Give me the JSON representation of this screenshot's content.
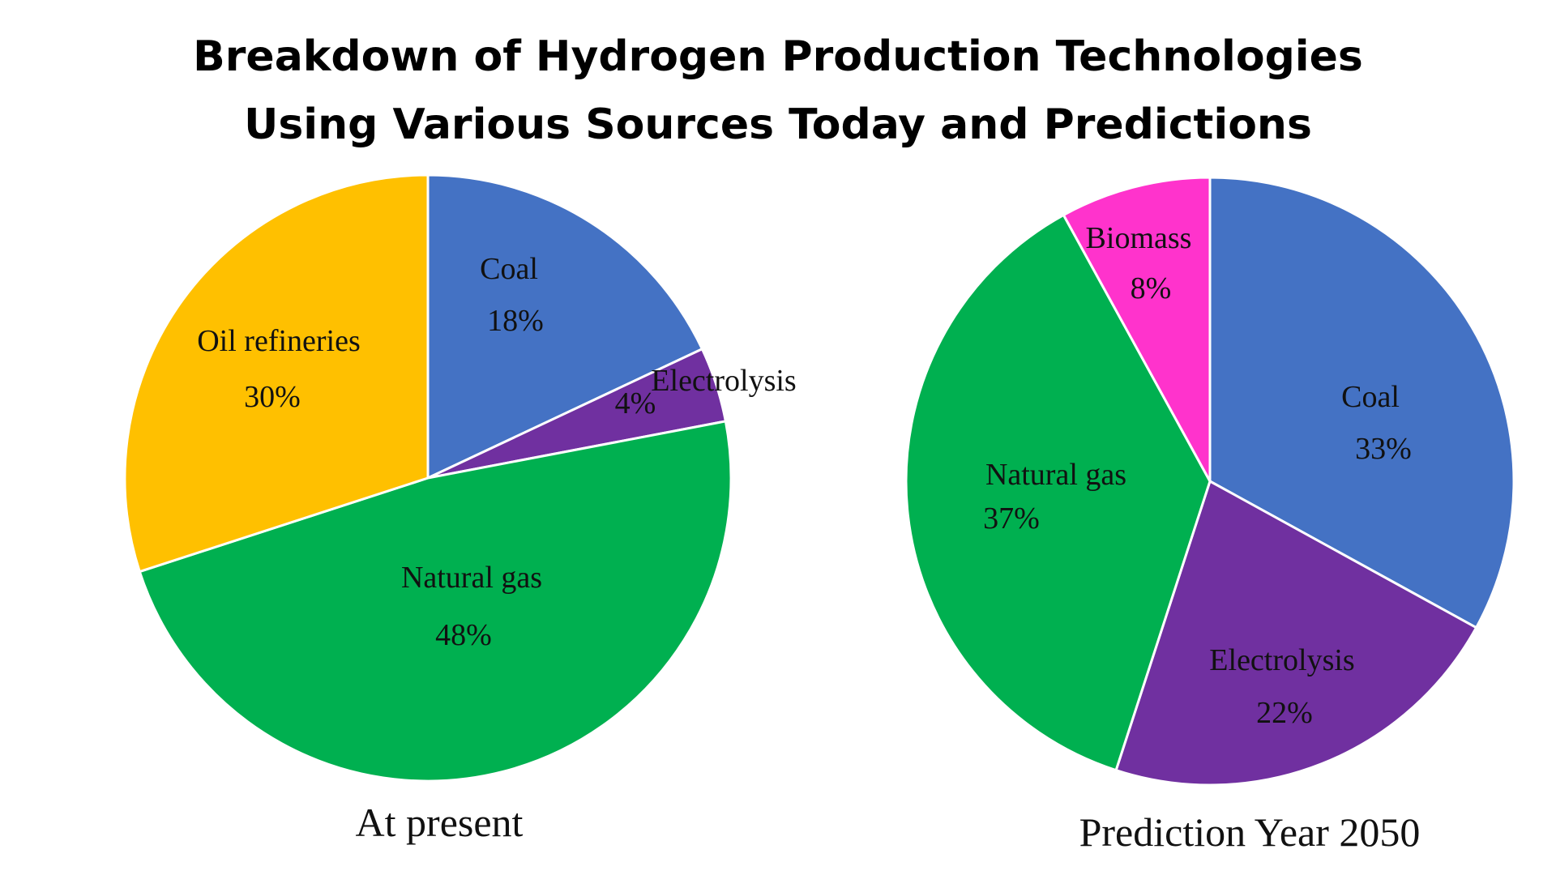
{
  "title": {
    "line1": "Breakdown of Hydrogen Production Technologies",
    "line2": "Using Various Sources Today and Predictions"
  },
  "chart_data": [
    {
      "type": "pie",
      "caption": "At present",
      "start_angle_deg": 0,
      "direction": "clockwise",
      "slices": [
        {
          "label": "Coal",
          "value": 18,
          "value_label": "18%",
          "color": "#4472C4"
        },
        {
          "label": "Electrolysis",
          "value": 4,
          "value_label": "4%",
          "color": "#7030A0"
        },
        {
          "label": "Natural  gas",
          "value": 48,
          "value_label": "48%",
          "color": "#00B050"
        },
        {
          "label": "Oil refineries",
          "value": 30,
          "value_label": "30%",
          "color": "#FFC000"
        }
      ]
    },
    {
      "type": "pie",
      "caption": "Prediction  Year 2050",
      "start_angle_deg": 0,
      "direction": "clockwise",
      "slices": [
        {
          "label": "Coal",
          "value": 33,
          "value_label": "33%",
          "color": "#4472C4"
        },
        {
          "label": "Electrolysis",
          "value": 22,
          "value_label": "22%",
          "color": "#7030A0"
        },
        {
          "label": "Natural gas",
          "value": 37,
          "value_label": "37%",
          "color": "#00B050"
        },
        {
          "label": "Biomass",
          "value": 8,
          "value_label": "8%",
          "color": "#FF33CC"
        }
      ]
    }
  ]
}
